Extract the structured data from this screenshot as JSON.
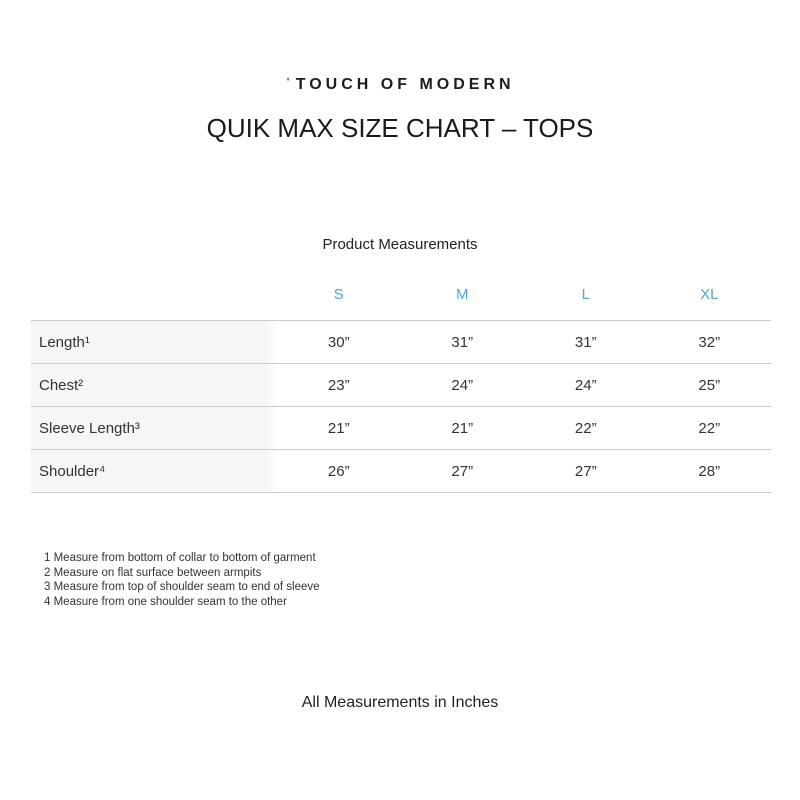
{
  "brand": {
    "mark": "ˈ",
    "name": "TOUCH OF MODERN"
  },
  "page_title": "QUIK MAX SIZE CHART – TOPS",
  "chart_data": {
    "type": "table",
    "title": "Product Measurements",
    "columns": [
      "S",
      "M",
      "L",
      "XL"
    ],
    "rows": [
      {
        "label": "Length¹",
        "values": [
          "30”",
          "31”",
          "31”",
          "32”"
        ]
      },
      {
        "label": "Chest²",
        "values": [
          "23”",
          "24”",
          "24”",
          "25”"
        ]
      },
      {
        "label": "Sleeve Length³",
        "values": [
          "21”",
          "21”",
          "22”",
          "22”"
        ]
      },
      {
        "label": "Shoulder⁴",
        "values": [
          "26”",
          "27”",
          "27”",
          "28”"
        ]
      }
    ]
  },
  "footnotes": [
    "1 Measure from bottom of collar to bottom of garment",
    "2 Measure on flat surface between armpits",
    "3 Measure from top of shoulder seam to end of sleeve",
    "4 Measure from one shoulder seam to the other"
  ],
  "footer_note": "All Measurements in Inches",
  "colors": {
    "size_header_blue": "#4fa6d6",
    "row_label_background": "#f6f6f6",
    "divider_line": "#cccccc",
    "text": "#333333"
  }
}
